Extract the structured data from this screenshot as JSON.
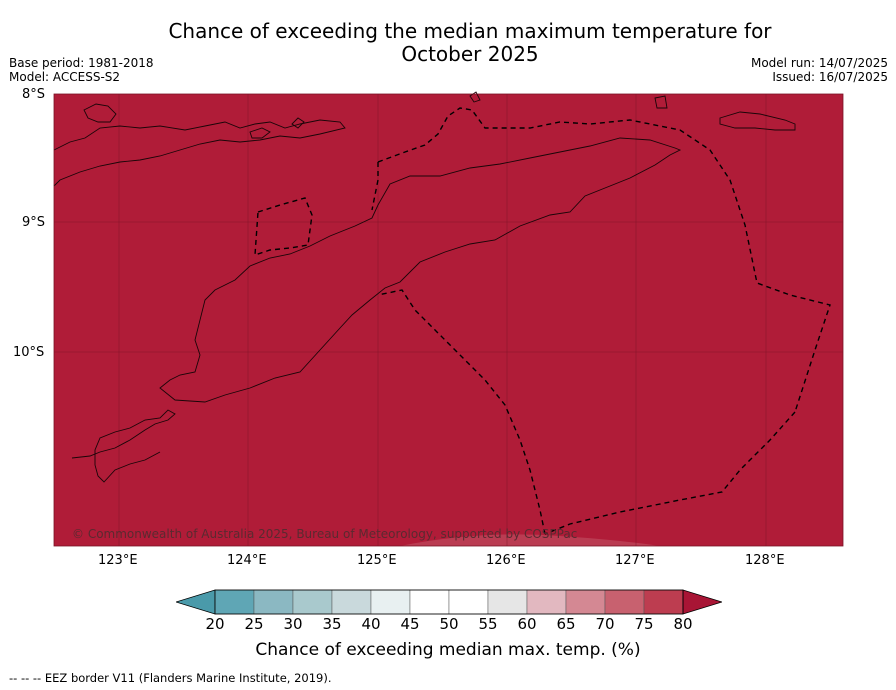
{
  "header": {
    "title_line1": "Chance of exceeding the median maximum temperature for",
    "title_line2": "October 2025",
    "base_period": "Base period: 1981-2018",
    "model": "Model: ACCESS-S2",
    "model_run": "Model run: 14/07/2025",
    "issued": "Issued: 16/07/2025"
  },
  "map": {
    "fill_color": "#b01c38",
    "lat_labels": [
      "8°S",
      "9°S",
      "10°S"
    ],
    "lon_labels": [
      "123°E",
      "124°E",
      "125°E",
      "126°E",
      "127°E",
      "128°E"
    ],
    "credit": "© Commonwealth of Australia 2025, Bureau of Meteorology, supported by COSPPac"
  },
  "colorbar": {
    "ticks": [
      "20",
      "25",
      "30",
      "35",
      "40",
      "45",
      "50",
      "55",
      "60",
      "65",
      "70",
      "75",
      "80"
    ],
    "colors": [
      "#5fa6b5",
      "#8bb8c2",
      "#a9c9cd",
      "#c9d9dc",
      "#e8f0f1",
      "#ffffff",
      "#ffffff",
      "#e6e6e6",
      "#e2b8c0",
      "#d48893",
      "#c8616f",
      "#bd3d50"
    ],
    "low_extend_color": "#4a9aaa",
    "high_extend_color": "#a81535",
    "label": "Chance of exceeding median max. temp. (%)"
  },
  "footer": {
    "legend_symbol": "--  --  --",
    "legend_text": "EEZ border V11 (Flanders Marine Institute, 2019)."
  }
}
